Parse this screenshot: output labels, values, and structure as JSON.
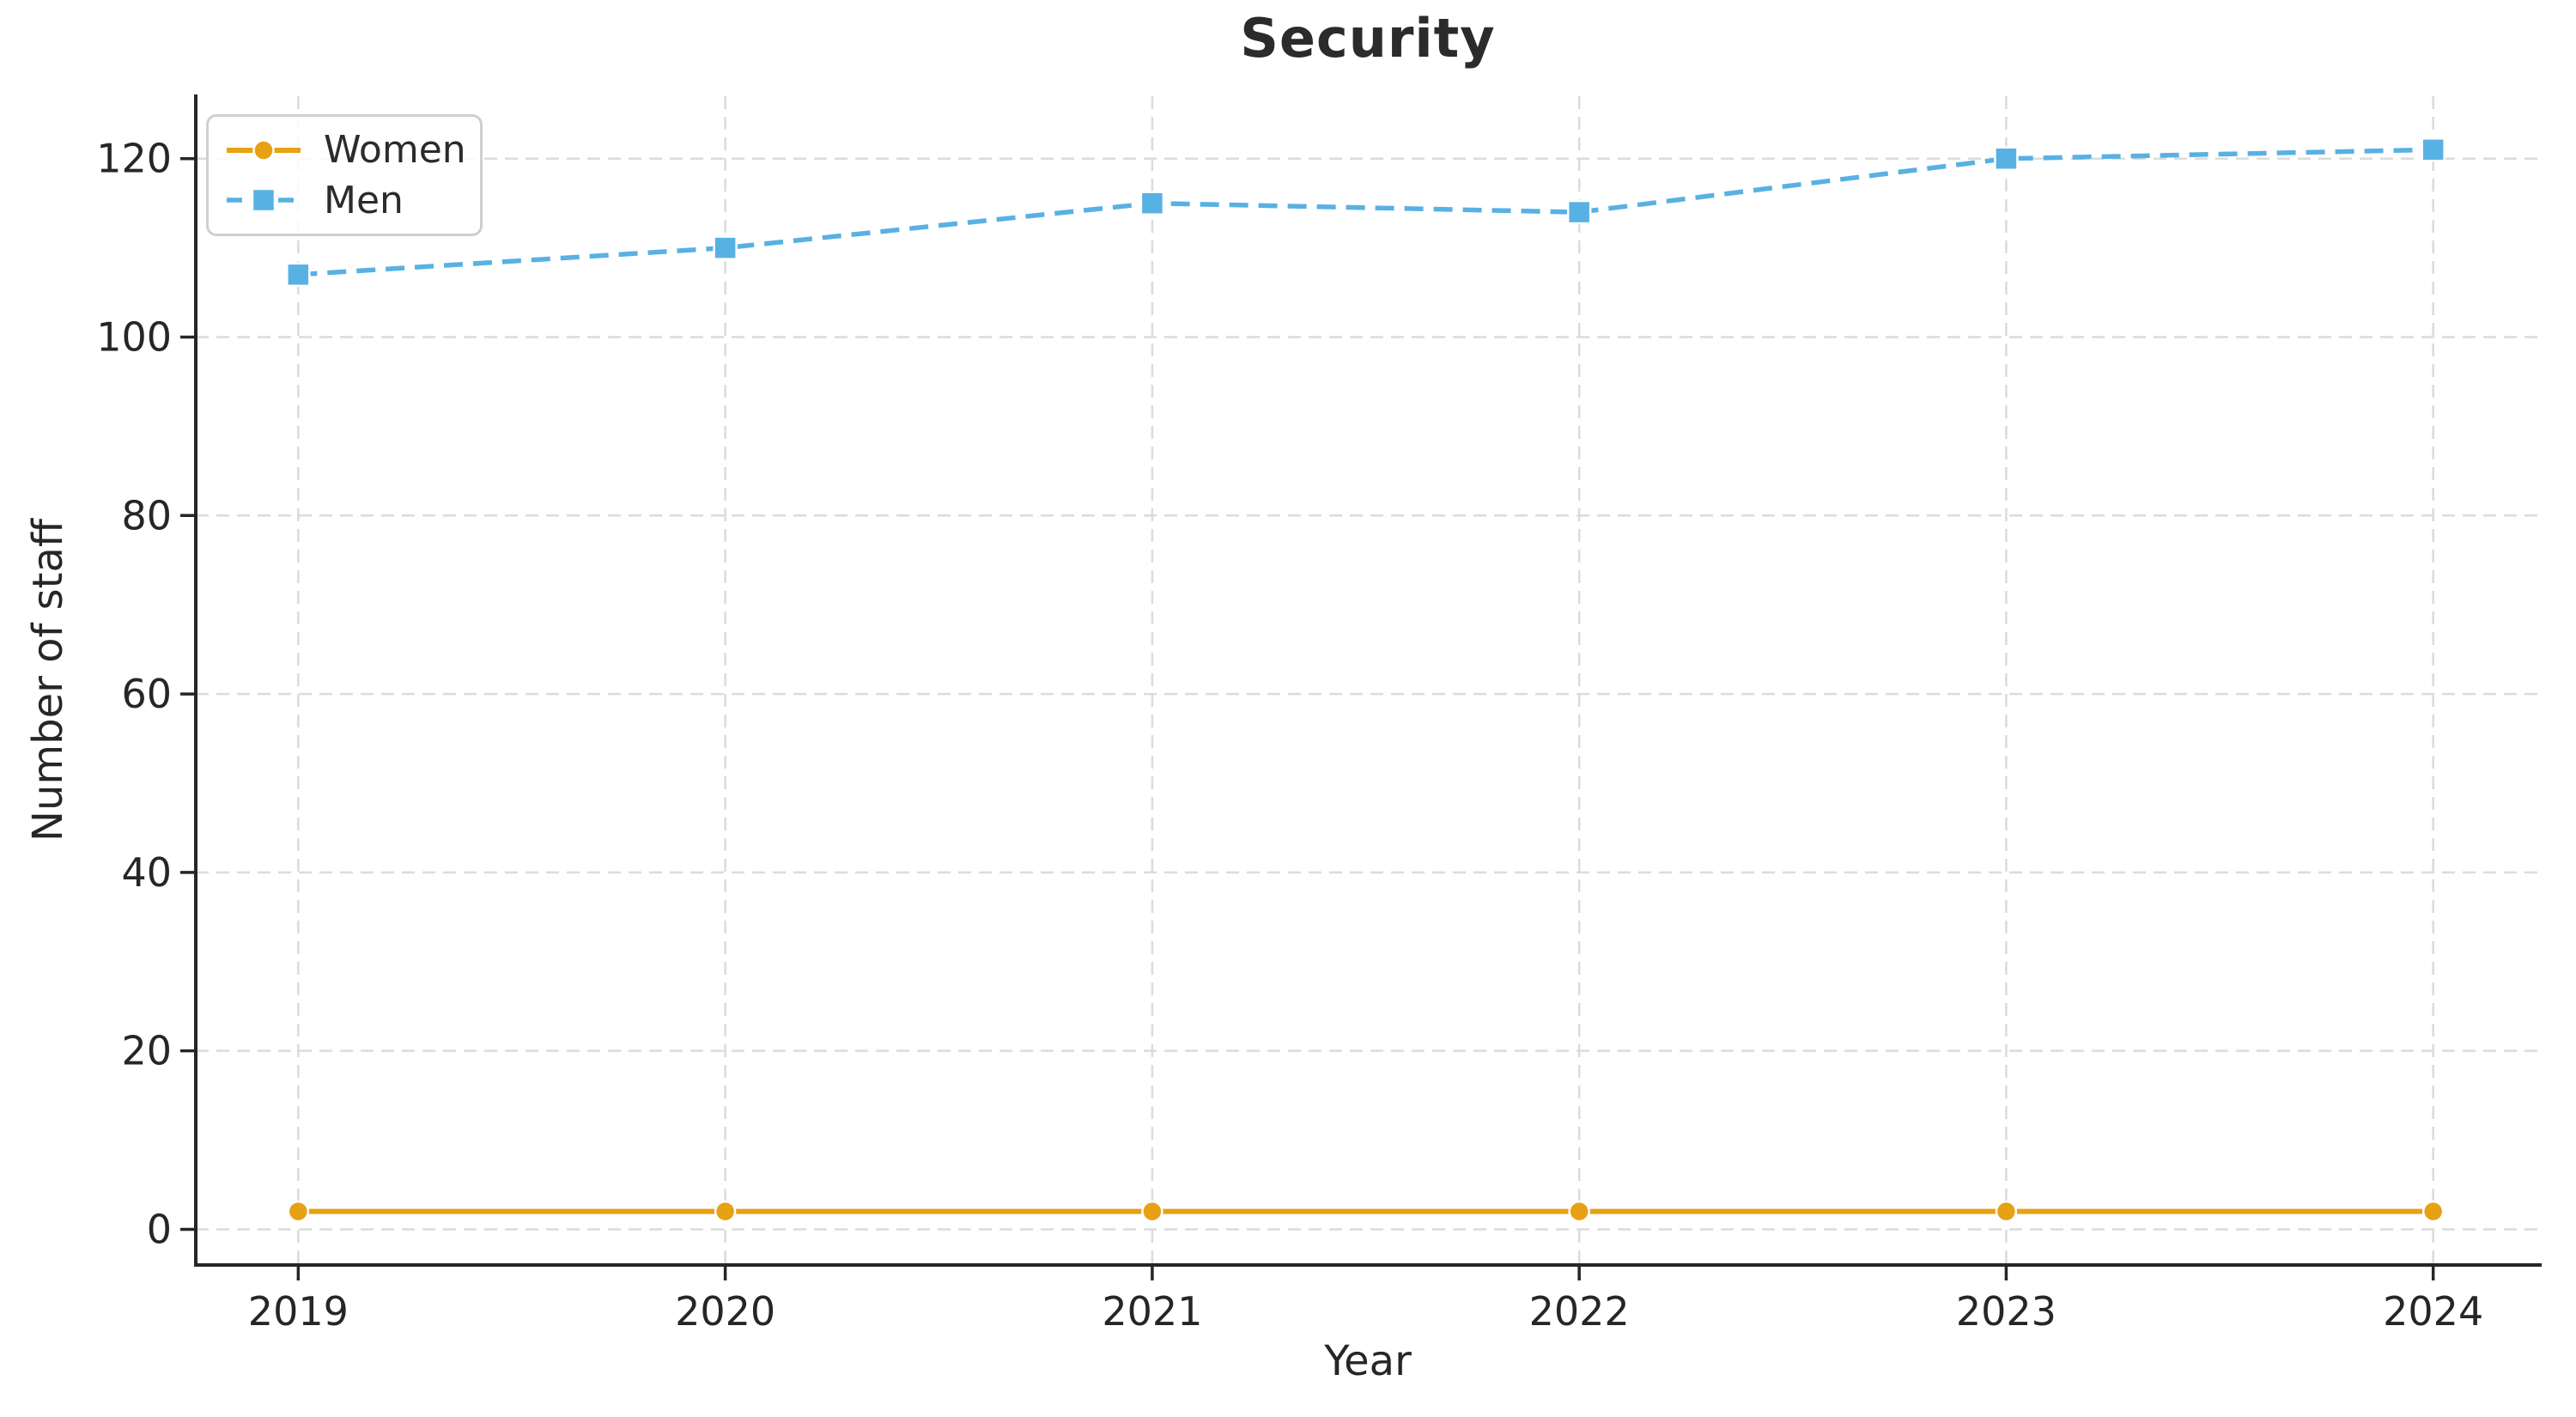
{
  "chart_data": {
    "type": "line",
    "title": "Security",
    "xlabel": "Year",
    "ylabel": "Number of staff",
    "x": [
      2019,
      2020,
      2021,
      2022,
      2023,
      2024
    ],
    "x_tick_labels": [
      "2019",
      "2020",
      "2021",
      "2022",
      "2023",
      "2024"
    ],
    "yticks": [
      0,
      20,
      40,
      60,
      80,
      100,
      120
    ],
    "series": [
      {
        "name": "Women",
        "values": [
          2,
          2,
          2,
          2,
          2,
          2
        ],
        "color": "#E7A114",
        "line_style": "solid",
        "marker": "circle"
      },
      {
        "name": "Men",
        "values": [
          107,
          110,
          115,
          114,
          120,
          121
        ],
        "color": "#58B1E3",
        "line_style": "dashed",
        "marker": "square"
      }
    ],
    "ylim": [
      -4,
      127
    ],
    "xlim": [
      2018.76,
      2024.25
    ],
    "grid": true,
    "grid_color": "#DBDBDB",
    "axis_color": "#262626",
    "text_color": "#262626",
    "legend_position": "upper left"
  }
}
